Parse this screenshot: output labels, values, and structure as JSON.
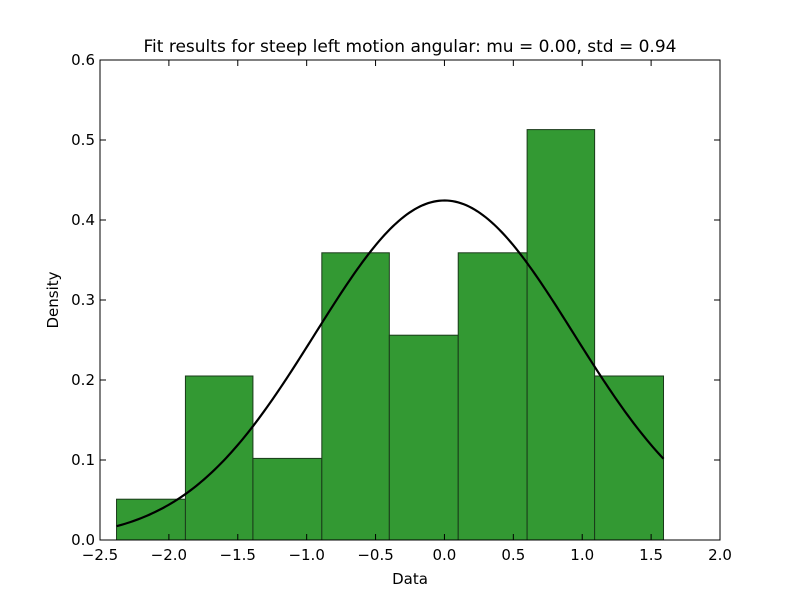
{
  "chart_data": {
    "type": "bar",
    "title": "Fit results for steep left motion angular: mu = 0.00,  std = 0.94",
    "xlabel": "Data",
    "ylabel": "Density",
    "xlim": [
      -2.5,
      2.0
    ],
    "ylim": [
      0.0,
      0.6
    ],
    "x_ticks": [
      -2.5,
      -2.0,
      -1.5,
      -1.0,
      -0.5,
      0.0,
      0.5,
      1.0,
      1.5,
      2.0
    ],
    "x_tick_labels": [
      "−2.5",
      "−2.0",
      "−1.5",
      "−1.0",
      "−0.5",
      "0.0",
      "0.5",
      "1.0",
      "1.5",
      "2.0"
    ],
    "y_ticks": [
      0.0,
      0.1,
      0.2,
      0.3,
      0.4,
      0.5,
      0.6
    ],
    "y_tick_labels": [
      "0.0",
      "0.1",
      "0.2",
      "0.3",
      "0.4",
      "0.5",
      "0.6"
    ],
    "grid": false,
    "histogram": {
      "bin_edges": [
        -2.38,
        -1.88,
        -1.39,
        -0.89,
        -0.4,
        0.1,
        0.6,
        1.09,
        1.59
      ],
      "values": [
        0.051,
        0.205,
        0.102,
        0.359,
        0.256,
        0.359,
        0.513,
        0.205
      ],
      "color": "#339933",
      "edge_color": "#1a3a1a"
    },
    "fit_curve": {
      "type": "normal_pdf",
      "mu": 0.0,
      "std": 0.94,
      "x_range": [
        -2.38,
        1.59
      ],
      "color": "#000000"
    }
  }
}
